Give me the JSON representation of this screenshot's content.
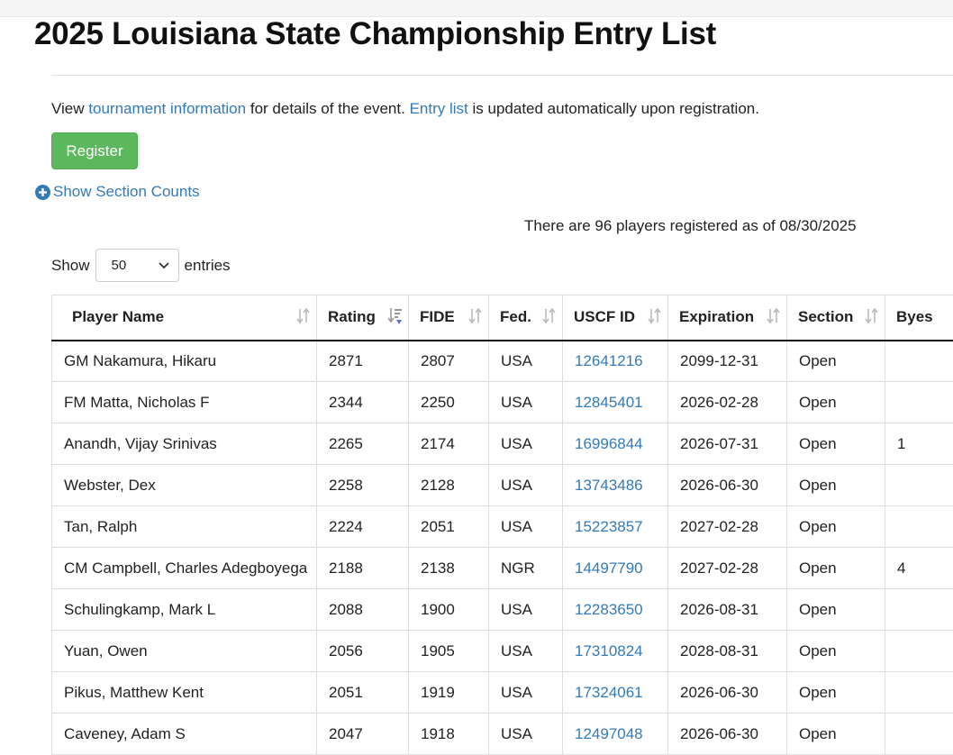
{
  "page": {
    "title": "2025 Louisiana State Championship Entry List",
    "intro": {
      "before": "View",
      "link1": "tournament information",
      "middle": "for details of the event.",
      "link2": "Entry list",
      "after": "is updated automatically upon registration."
    },
    "register_button": "Register",
    "section_counts_toggle": "Show Section Counts",
    "registered_note": "There are 96 players registered as of 08/30/2025",
    "length_control": {
      "before": "Show",
      "selected": "50",
      "after": "entries"
    },
    "table": {
      "headers": [
        "Player Name",
        "Rating",
        "FIDE",
        "Fed.",
        "USCF ID",
        "Expiration",
        "Section",
        "Byes"
      ],
      "rows": [
        [
          "GM Nakamura, Hikaru",
          "2871",
          "2807",
          "USA",
          "12641216",
          "2099-12-31",
          "Open",
          null
        ],
        [
          "FM Matta, Nicholas F",
          "2344",
          "2250",
          "USA",
          "12845401",
          "2026-02-28",
          "Open",
          null
        ],
        [
          "Anandh, Vijay Srinivas",
          "2265",
          "2174",
          "USA",
          "16996844",
          "2026-07-31",
          "Open",
          "1"
        ],
        [
          "Webster, Dex",
          "2258",
          "2128",
          "USA",
          "13743486",
          "2026-06-30",
          "Open",
          null
        ],
        [
          "Tan, Ralph",
          "2224",
          "2051",
          "USA",
          "15223857",
          "2027-02-28",
          "Open",
          null
        ],
        [
          "CM Campbell, Charles Adegboyega",
          "2188",
          "2138",
          "NGR",
          "14497790",
          "2027-02-28",
          "Open",
          "4"
        ],
        [
          "Schulingkamp, Mark L",
          "2088",
          "1900",
          "USA",
          "12283650",
          "2026-08-31",
          "Open",
          null
        ],
        [
          "Yuan, Owen",
          "2056",
          "1905",
          "USA",
          "17310824",
          "2028-08-31",
          "Open",
          null
        ],
        [
          "Pikus, Matthew Kent",
          "2051",
          "1919",
          "USA",
          "17324061",
          "2026-06-30",
          "Open",
          null
        ],
        [
          "Caveney, Adam S",
          "2047",
          "1918",
          "USA",
          "12497048",
          "2026-06-30",
          "Open",
          null
        ]
      ]
    }
  }
}
